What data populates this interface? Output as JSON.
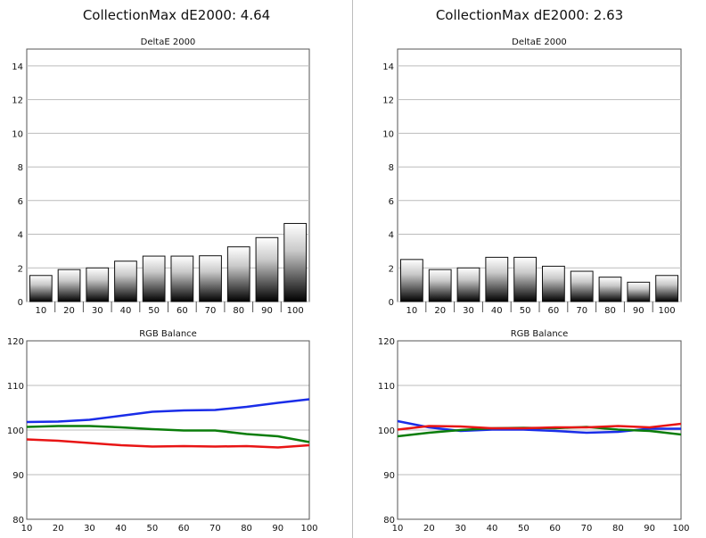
{
  "panels": [
    {
      "title": "CollectionMax dE2000: 4.64",
      "deltae": {
        "title": "DeltaE 2000",
        "yticks": [
          0,
          2,
          4,
          6,
          8,
          10,
          12,
          14
        ],
        "ylim": [
          0,
          15
        ],
        "categories": [
          "10",
          "20",
          "30",
          "40",
          "50",
          "60",
          "70",
          "80",
          "90",
          "100"
        ],
        "values": [
          1.55,
          1.9,
          2.0,
          2.4,
          2.7,
          2.7,
          2.72,
          3.25,
          3.8,
          4.64
        ]
      },
      "rgb": {
        "title": "RGB Balance",
        "xticks": [
          10,
          20,
          30,
          40,
          50,
          60,
          70,
          80,
          90,
          100
        ],
        "yticks": [
          80,
          90,
          100,
          110,
          120
        ],
        "ylim": [
          80,
          120
        ],
        "series": [
          {
            "color": "#1a2de8",
            "values": [
              101.8,
              101.9,
              102.3,
              103.2,
              104.1,
              104.4,
              104.5,
              105.2,
              106.1,
              106.9
            ]
          },
          {
            "color": "#0a7d0a",
            "values": [
              100.7,
              100.9,
              100.9,
              100.6,
              100.2,
              99.9,
              99.9,
              99.1,
              98.6,
              97.3
            ]
          },
          {
            "color": "#e81515",
            "values": [
              97.9,
              97.6,
              97.1,
              96.6,
              96.3,
              96.4,
              96.3,
              96.4,
              96.1,
              96.6
            ]
          }
        ]
      }
    },
    {
      "title": "CollectionMax dE2000: 2.63",
      "deltae": {
        "title": "DeltaE 2000",
        "yticks": [
          0,
          2,
          4,
          6,
          8,
          10,
          12,
          14
        ],
        "ylim": [
          0,
          15
        ],
        "categories": [
          "10",
          "20",
          "30",
          "40",
          "50",
          "60",
          "70",
          "80",
          "90",
          "100"
        ],
        "values": [
          2.5,
          1.9,
          2.0,
          2.63,
          2.63,
          2.1,
          1.8,
          1.45,
          1.15,
          1.55
        ]
      },
      "rgb": {
        "title": "RGB Balance",
        "xticks": [
          10,
          20,
          30,
          40,
          50,
          60,
          70,
          80,
          90,
          100
        ],
        "yticks": [
          80,
          90,
          100,
          110,
          120
        ],
        "ylim": [
          80,
          120
        ],
        "series": [
          {
            "color": "#1a2de8",
            "values": [
              102.0,
              100.6,
              99.8,
              100.1,
              100.1,
              99.8,
              99.4,
              99.6,
              100.3,
              100.3
            ]
          },
          {
            "color": "#0a7d0a",
            "values": [
              98.6,
              99.4,
              100.0,
              100.4,
              100.5,
              100.4,
              100.7,
              100.1,
              99.8,
              99.0
            ]
          },
          {
            "color": "#e81515",
            "values": [
              100.1,
              100.9,
              100.8,
              100.4,
              100.4,
              100.6,
              100.6,
              100.9,
              100.6,
              101.4
            ]
          }
        ]
      }
    }
  ],
  "chart_data": [
    {
      "type": "bar",
      "title": "DeltaE 2000",
      "categories": [
        "10",
        "20",
        "30",
        "40",
        "50",
        "60",
        "70",
        "80",
        "90",
        "100"
      ],
      "values": [
        1.55,
        1.9,
        2.0,
        2.4,
        2.7,
        2.7,
        2.72,
        3.25,
        3.8,
        4.64
      ],
      "ylim": [
        0,
        15
      ],
      "grid": true
    },
    {
      "type": "line",
      "title": "RGB Balance",
      "x": [
        10,
        20,
        30,
        40,
        50,
        60,
        70,
        80,
        90,
        100
      ],
      "ylim": [
        80,
        120
      ],
      "grid": true,
      "series": [
        {
          "values": [
            101.8,
            101.9,
            102.3,
            103.2,
            104.1,
            104.4,
            104.5,
            105.2,
            106.1,
            106.9
          ]
        },
        {
          "values": [
            100.7,
            100.9,
            100.9,
            100.6,
            100.2,
            99.9,
            99.9,
            99.1,
            98.6,
            97.3
          ]
        },
        {
          "values": [
            97.9,
            97.6,
            97.1,
            96.6,
            96.3,
            96.4,
            96.3,
            96.4,
            96.1,
            96.6
          ]
        }
      ]
    },
    {
      "type": "bar",
      "title": "DeltaE 2000",
      "categories": [
        "10",
        "20",
        "30",
        "40",
        "50",
        "60",
        "70",
        "80",
        "90",
        "100"
      ],
      "values": [
        2.5,
        1.9,
        2.0,
        2.63,
        2.63,
        2.1,
        1.8,
        1.45,
        1.15,
        1.55
      ],
      "ylim": [
        0,
        15
      ],
      "grid": true
    },
    {
      "type": "line",
      "title": "RGB Balance",
      "x": [
        10,
        20,
        30,
        40,
        50,
        60,
        70,
        80,
        90,
        100
      ],
      "ylim": [
        80,
        120
      ],
      "grid": true,
      "series": [
        {
          "values": [
            102.0,
            100.6,
            99.8,
            100.1,
            100.1,
            99.8,
            99.4,
            99.6,
            100.3,
            100.3
          ]
        },
        {
          "values": [
            98.6,
            99.4,
            100.0,
            100.4,
            100.5,
            100.4,
            100.7,
            100.1,
            99.8,
            99.0
          ]
        },
        {
          "values": [
            100.1,
            100.9,
            100.8,
            100.4,
            100.4,
            100.6,
            100.6,
            100.9,
            100.6,
            101.4
          ]
        }
      ]
    }
  ]
}
